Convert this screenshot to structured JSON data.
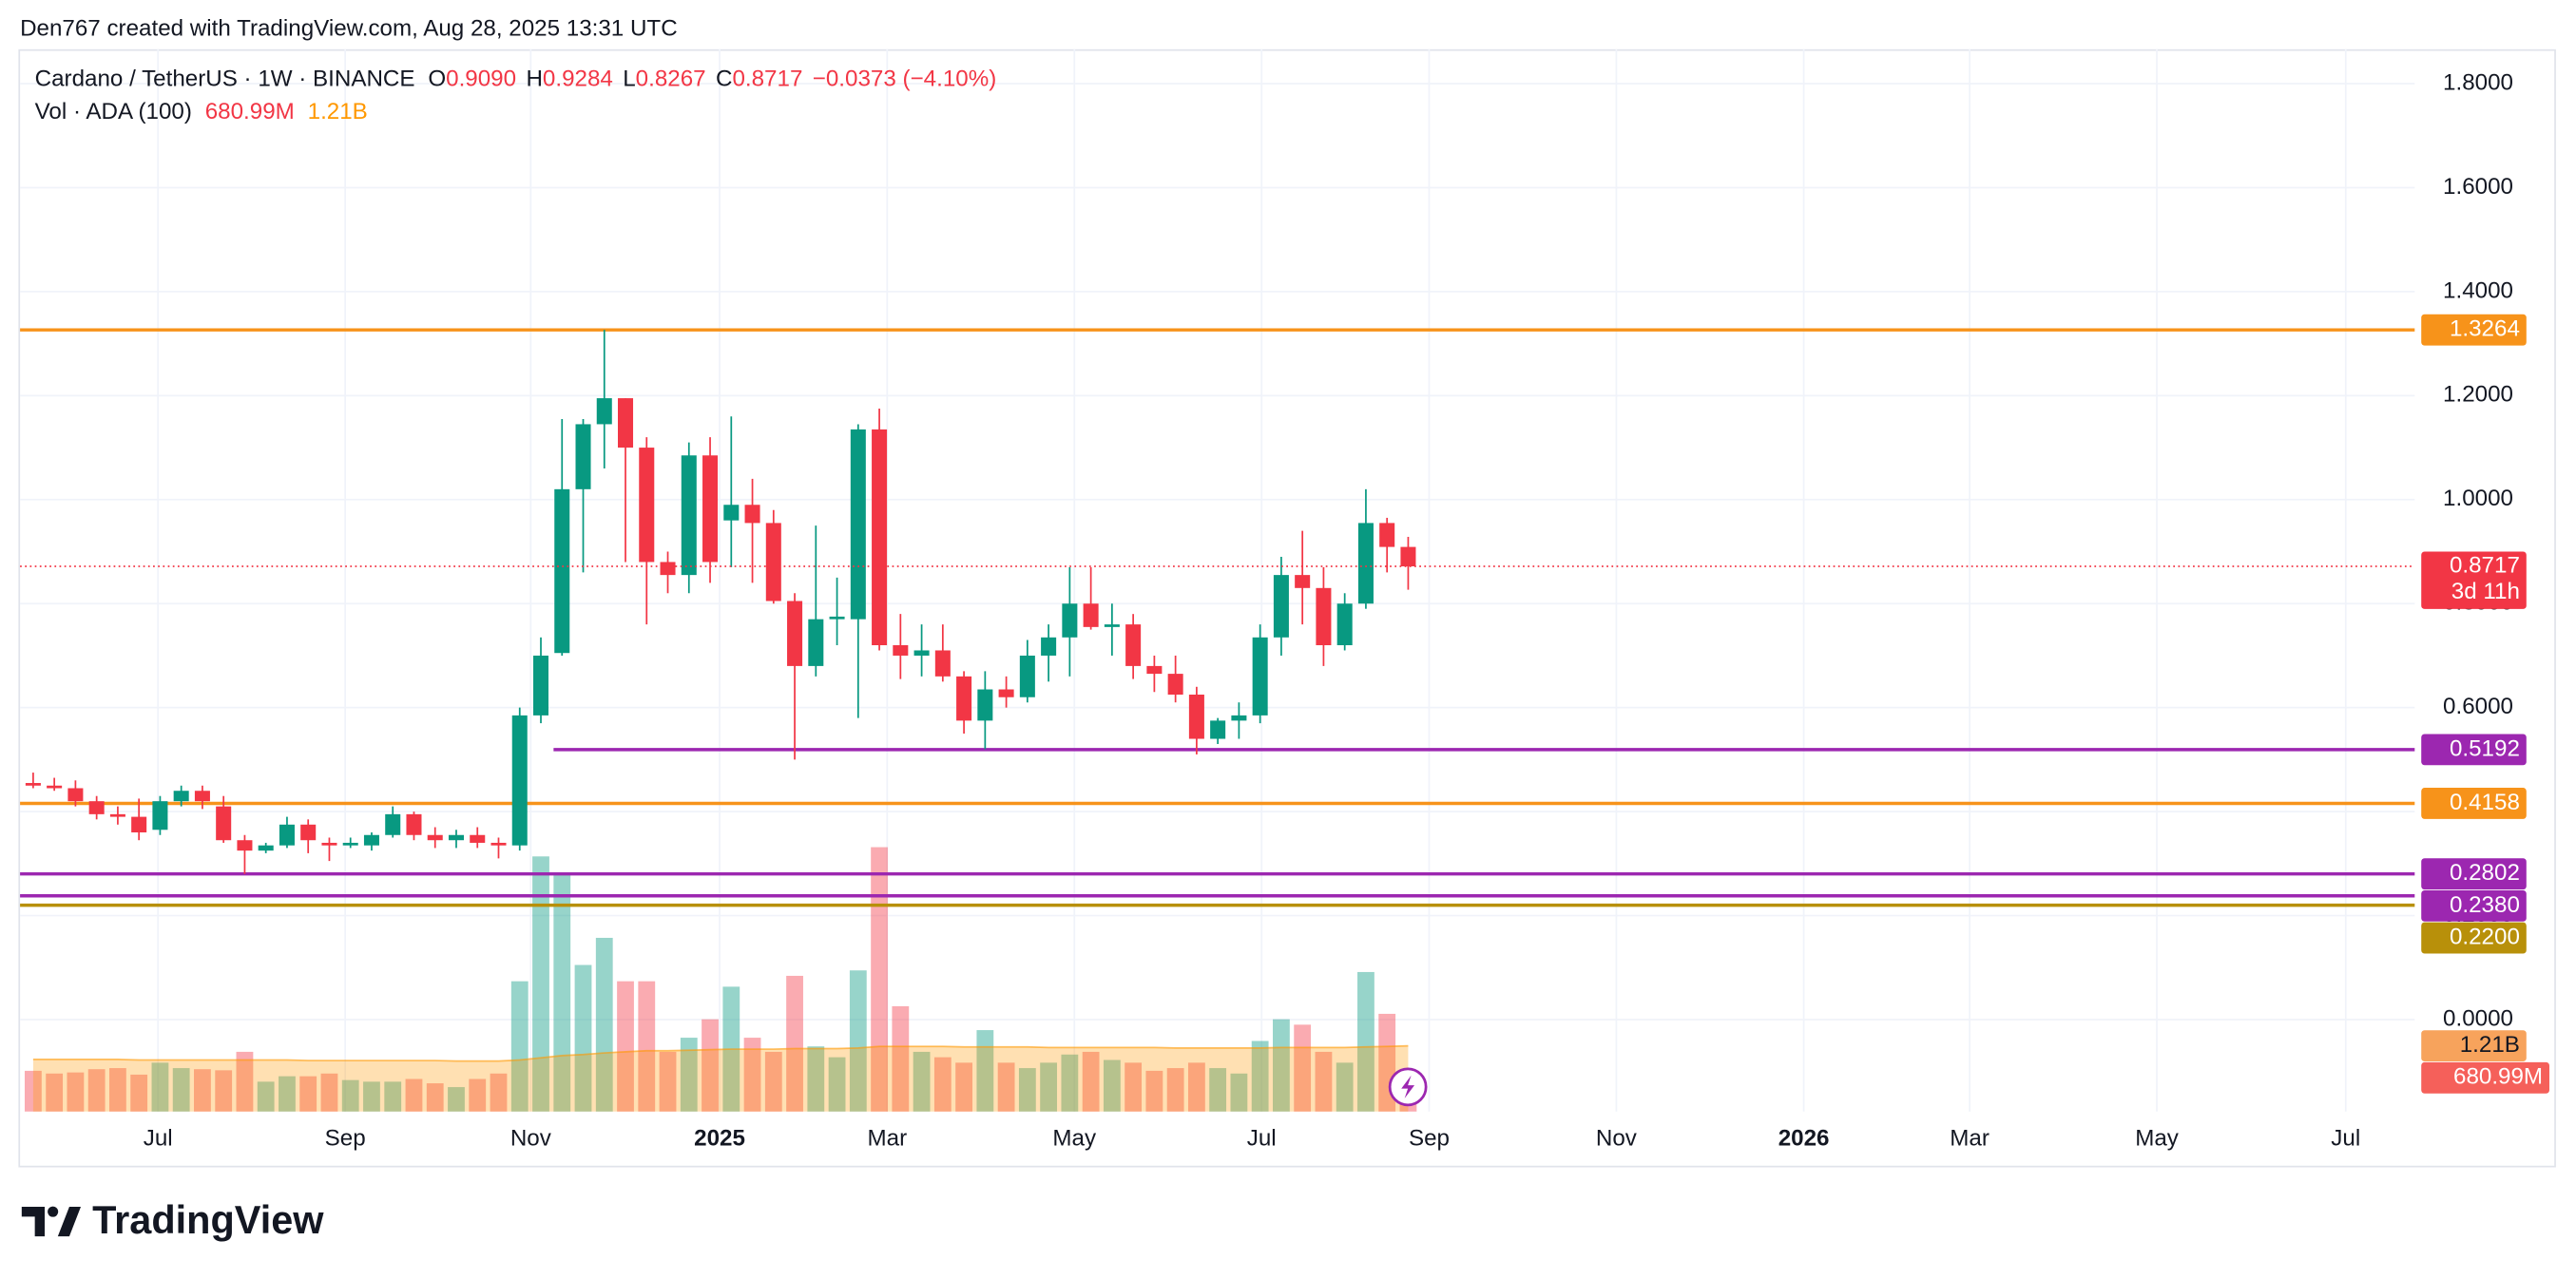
{
  "header": "Den767 created with TradingView.com, Aug 28, 2025 13:31 UTC",
  "brand": "TradingView",
  "chart_data": {
    "type": "candlestick",
    "legend": {
      "symbol": "Cardano / TetherUS · 1W · BINANCE",
      "o": "O",
      "open": "0.9090",
      "h": "H",
      "high": "0.9284",
      "l": "L",
      "low": "0.8267",
      "c": "C",
      "close": "0.8717",
      "change": "−0.0373 (−4.10%)",
      "vol": "Vol · ADA (100)",
      "vol_value": "680.99M",
      "vol_ma": "1.21B"
    },
    "open": [
      0.455,
      0.45,
      0.445,
      0.42,
      0.395,
      0.39,
      0.365,
      0.42,
      0.44,
      0.41,
      0.345,
      0.325,
      0.335,
      0.375,
      0.34,
      0.335,
      0.335,
      0.355,
      0.395,
      0.355,
      0.345,
      0.355,
      0.34,
      0.335,
      0.585,
      0.705,
      1.02,
      1.145,
      1.195,
      1.1,
      0.88,
      0.855,
      1.085,
      0.96,
      0.99,
      0.955,
      0.805,
      0.68,
      0.77,
      0.77,
      1.135,
      0.72,
      0.7,
      0.71,
      0.66,
      0.575,
      0.635,
      0.62,
      0.7,
      0.735,
      0.8,
      0.755,
      0.76,
      0.68,
      0.665,
      0.625,
      0.54,
      0.575,
      0.585,
      0.735,
      0.855,
      0.83,
      0.72,
      0.8,
      0.955,
      0.909
    ],
    "high": [
      0.475,
      0.465,
      0.46,
      0.43,
      0.41,
      0.425,
      0.43,
      0.45,
      0.45,
      0.43,
      0.355,
      0.34,
      0.39,
      0.385,
      0.35,
      0.35,
      0.36,
      0.41,
      0.4,
      0.37,
      0.365,
      0.37,
      0.35,
      0.6,
      0.735,
      1.155,
      1.155,
      1.3264,
      1.195,
      1.12,
      0.9,
      1.11,
      1.12,
      1.16,
      1.04,
      0.98,
      0.82,
      0.95,
      0.85,
      1.145,
      1.175,
      0.78,
      0.76,
      0.76,
      0.67,
      0.67,
      0.66,
      0.73,
      0.76,
      0.87,
      0.87,
      0.8,
      0.78,
      0.7,
      0.7,
      0.64,
      0.58,
      0.61,
      0.76,
      0.89,
      0.94,
      0.87,
      0.82,
      1.02,
      0.965,
      0.9284
    ],
    "low": [
      0.445,
      0.44,
      0.41,
      0.385,
      0.375,
      0.345,
      0.355,
      0.41,
      0.405,
      0.34,
      0.28,
      0.32,
      0.33,
      0.32,
      0.305,
      0.33,
      0.325,
      0.35,
      0.345,
      0.33,
      0.33,
      0.33,
      0.31,
      0.325,
      0.57,
      0.7,
      0.86,
      1.06,
      0.88,
      0.76,
      0.82,
      0.82,
      0.84,
      0.87,
      0.84,
      0.8,
      0.5,
      0.66,
      0.72,
      0.58,
      0.71,
      0.655,
      0.66,
      0.65,
      0.55,
      0.52,
      0.6,
      0.61,
      0.65,
      0.66,
      0.75,
      0.7,
      0.655,
      0.63,
      0.61,
      0.51,
      0.53,
      0.54,
      0.57,
      0.7,
      0.76,
      0.68,
      0.71,
      0.79,
      0.86,
      0.8267
    ],
    "close": [
      0.45,
      0.445,
      0.42,
      0.395,
      0.39,
      0.36,
      0.42,
      0.44,
      0.42,
      0.345,
      0.325,
      0.335,
      0.375,
      0.345,
      0.335,
      0.34,
      0.355,
      0.395,
      0.355,
      0.345,
      0.355,
      0.34,
      0.335,
      0.585,
      0.7,
      1.02,
      1.145,
      1.195,
      1.1,
      0.88,
      0.855,
      1.085,
      0.88,
      0.99,
      0.955,
      0.805,
      0.68,
      0.77,
      0.775,
      1.135,
      0.72,
      0.7,
      0.71,
      0.66,
      0.575,
      0.635,
      0.62,
      0.7,
      0.735,
      0.8,
      0.755,
      0.76,
      0.68,
      0.665,
      0.625,
      0.54,
      0.575,
      0.585,
      0.735,
      0.855,
      0.83,
      0.72,
      0.8,
      0.955,
      0.909,
      0.8717
    ],
    "volume": [
      0.75,
      0.7,
      0.72,
      0.78,
      0.8,
      0.68,
      0.9,
      0.8,
      0.78,
      0.76,
      1.1,
      0.55,
      0.65,
      0.65,
      0.7,
      0.58,
      0.55,
      0.55,
      0.6,
      0.52,
      0.45,
      0.6,
      0.7,
      2.4,
      4.7,
      4.4,
      2.7,
      3.2,
      2.4,
      2.4,
      1.1,
      1.36,
      1.7,
      2.3,
      1.36,
      1.1,
      2.5,
      1.2,
      1.0,
      2.6,
      4.87,
      1.94,
      1.1,
      1.0,
      0.9,
      1.5,
      0.9,
      0.8,
      0.9,
      1.05,
      1.1,
      0.95,
      0.9,
      0.75,
      0.8,
      0.9,
      0.8,
      0.7,
      1.3,
      1.7,
      1.6,
      1.1,
      0.9,
      2.57,
      1.8,
      0.68099
    ],
    "volume_ma": [
      0.96,
      0.96,
      0.96,
      0.96,
      0.96,
      0.95,
      0.95,
      0.95,
      0.95,
      0.95,
      0.95,
      0.95,
      0.95,
      0.94,
      0.94,
      0.94,
      0.94,
      0.94,
      0.94,
      0.94,
      0.93,
      0.93,
      0.93,
      0.95,
      0.99,
      1.03,
      1.05,
      1.08,
      1.1,
      1.12,
      1.12,
      1.13,
      1.14,
      1.15,
      1.15,
      1.15,
      1.16,
      1.16,
      1.16,
      1.17,
      1.2,
      1.2,
      1.2,
      1.2,
      1.19,
      1.19,
      1.19,
      1.19,
      1.18,
      1.18,
      1.18,
      1.18,
      1.18,
      1.18,
      1.17,
      1.17,
      1.17,
      1.17,
      1.17,
      1.18,
      1.18,
      1.18,
      1.18,
      1.19,
      1.2,
      1.21
    ],
    "volume_last_label": "680.99M",
    "volume_ma_last_label": "1.21B",
    "last_label": "0.8717",
    "countdown": "3d 11h",
    "up_color": "#089981",
    "down_color": "#f23645",
    "volume_ma_color": "#ff9800",
    "ylim": [
      -0.1768,
      1.8661
    ],
    "volume_ylim": [
      0,
      19.57
    ],
    "xlim": [
      -0.62,
      112.58
    ],
    "yticks": [
      {
        "value": 0,
        "label": "0.0000"
      },
      {
        "value": 0.2,
        "label": "0.2000"
      },
      {
        "value": 0.4,
        "label": "0.4000"
      },
      {
        "value": 0.6,
        "label": "0.6000"
      },
      {
        "value": 0.8,
        "label": "0.8000"
      },
      {
        "value": 1.0,
        "label": "1.0000"
      },
      {
        "value": 1.2,
        "label": "1.2000"
      },
      {
        "value": 1.4,
        "label": "1.4000"
      },
      {
        "value": 1.6,
        "label": "1.6000"
      },
      {
        "value": 1.8,
        "label": "1.8000"
      }
    ],
    "xticks": [
      {
        "value": 5.9,
        "label": "Jul"
      },
      {
        "value": 14.75,
        "label": "Sep"
      },
      {
        "value": 23.52,
        "label": "Nov"
      },
      {
        "value": 32.45,
        "label": "2025"
      },
      {
        "value": 40.37,
        "label": "Mar"
      },
      {
        "value": 49.22,
        "label": "May"
      },
      {
        "value": 58.07,
        "label": "Jul"
      },
      {
        "value": 65.99,
        "label": "Sep"
      },
      {
        "value": 74.84,
        "label": "Nov"
      },
      {
        "value": 83.7,
        "label": "2026"
      },
      {
        "value": 91.54,
        "label": "Mar"
      },
      {
        "value": 100.39,
        "label": "May"
      },
      {
        "value": 109.32,
        "label": "Jul"
      }
    ],
    "grid": true,
    "levels": [
      {
        "value": 1.3264,
        "label": "1.3264",
        "color": "#f7931a"
      },
      {
        "value": 0.5192,
        "label": "0.5192",
        "color": "#9c27b0",
        "x_start": 24.6
      },
      {
        "value": 0.4158,
        "label": "0.4158",
        "color": "#f7931a"
      },
      {
        "value": 0.2802,
        "label": "0.2802",
        "color": "#9c27b0"
      },
      {
        "value": 0.238,
        "label": "0.2380",
        "color": "#9c27b0"
      },
      {
        "value": 0.22,
        "label": "0.2200",
        "color": "#b8900a"
      }
    ]
  }
}
